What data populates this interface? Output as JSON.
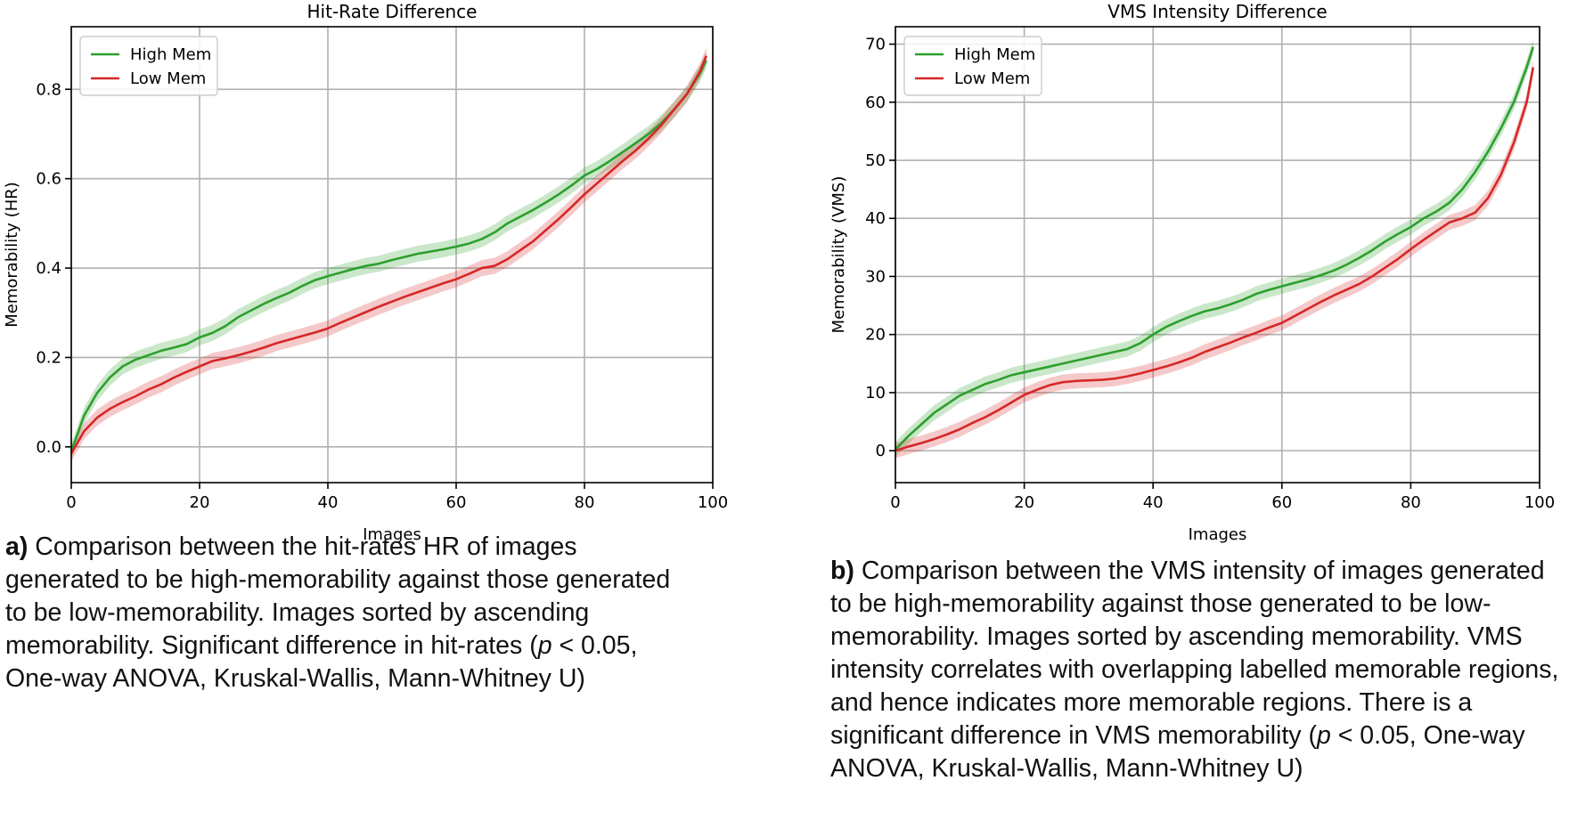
{
  "chart_data": [
    {
      "type": "line",
      "title": "Hit-Rate Difference",
      "xlabel": "Images",
      "ylabel": "Memorability (HR)",
      "xlim": [
        0,
        100
      ],
      "ylim": [
        -0.08,
        0.94
      ],
      "xticks": [
        0,
        20,
        40,
        60,
        80,
        100
      ],
      "yticks": [
        0.0,
        0.2,
        0.4,
        0.6,
        0.8
      ],
      "ytick_labels": [
        "0.0",
        "0.2",
        "0.4",
        "0.6",
        "0.8"
      ],
      "grid": true,
      "legend_position": "top-left",
      "band_halfwidth": 0.018,
      "series": [
        {
          "name": "High Mem",
          "color": "#2ca02c",
          "x": [
            0,
            2,
            4,
            6,
            8,
            10,
            12,
            14,
            16,
            18,
            20,
            22,
            24,
            26,
            28,
            30,
            32,
            34,
            36,
            38,
            40,
            42,
            44,
            46,
            48,
            50,
            52,
            54,
            56,
            58,
            60,
            62,
            64,
            66,
            68,
            70,
            72,
            74,
            76,
            78,
            80,
            82,
            84,
            86,
            88,
            90,
            92,
            94,
            96,
            98,
            99
          ],
          "values": [
            -0.01,
            0.07,
            0.12,
            0.155,
            0.18,
            0.195,
            0.205,
            0.215,
            0.222,
            0.23,
            0.245,
            0.255,
            0.27,
            0.29,
            0.305,
            0.32,
            0.333,
            0.345,
            0.36,
            0.373,
            0.382,
            0.39,
            0.398,
            0.405,
            0.41,
            0.418,
            0.425,
            0.432,
            0.437,
            0.442,
            0.448,
            0.455,
            0.465,
            0.48,
            0.5,
            0.515,
            0.53,
            0.547,
            0.565,
            0.585,
            0.607,
            0.622,
            0.64,
            0.66,
            0.68,
            0.7,
            0.725,
            0.755,
            0.79,
            0.835,
            0.865
          ]
        },
        {
          "name": "Low Mem",
          "color": "#d62728",
          "x": [
            0,
            2,
            4,
            6,
            8,
            10,
            12,
            14,
            16,
            18,
            20,
            22,
            24,
            26,
            28,
            30,
            32,
            34,
            36,
            38,
            40,
            42,
            44,
            46,
            48,
            50,
            52,
            54,
            56,
            58,
            60,
            62,
            64,
            66,
            68,
            70,
            72,
            74,
            76,
            78,
            80,
            82,
            84,
            86,
            88,
            90,
            92,
            94,
            96,
            98,
            99
          ],
          "values": [
            -0.015,
            0.035,
            0.065,
            0.085,
            0.1,
            0.113,
            0.128,
            0.14,
            0.155,
            0.168,
            0.18,
            0.192,
            0.198,
            0.205,
            0.213,
            0.222,
            0.232,
            0.24,
            0.248,
            0.256,
            0.265,
            0.278,
            0.29,
            0.302,
            0.314,
            0.325,
            0.336,
            0.346,
            0.356,
            0.366,
            0.375,
            0.387,
            0.4,
            0.405,
            0.42,
            0.44,
            0.46,
            0.485,
            0.51,
            0.537,
            0.565,
            0.59,
            0.615,
            0.64,
            0.663,
            0.69,
            0.72,
            0.755,
            0.79,
            0.84,
            0.875
          ]
        }
      ]
    },
    {
      "type": "line",
      "title": "VMS Intensity Difference",
      "xlabel": "Images",
      "ylabel": "Memorability (VMS)",
      "xlim": [
        0,
        100
      ],
      "ylim": [
        -5.5,
        73
      ],
      "xticks": [
        0,
        20,
        40,
        60,
        80,
        100
      ],
      "yticks": [
        0,
        10,
        20,
        30,
        40,
        50,
        60,
        70
      ],
      "ytick_labels": [
        "0",
        "10",
        "20",
        "30",
        "40",
        "50",
        "60",
        "70"
      ],
      "grid": true,
      "legend_position": "top-left",
      "band_halfwidth": 1.3,
      "series": [
        {
          "name": "High Mem",
          "color": "#2ca02c",
          "x": [
            0,
            2,
            4,
            6,
            8,
            10,
            12,
            14,
            16,
            18,
            20,
            22,
            24,
            26,
            28,
            30,
            32,
            34,
            36,
            38,
            40,
            42,
            44,
            46,
            48,
            50,
            52,
            54,
            56,
            58,
            60,
            62,
            64,
            66,
            68,
            70,
            72,
            74,
            76,
            78,
            80,
            82,
            84,
            86,
            88,
            90,
            92,
            94,
            96,
            98,
            99
          ],
          "values": [
            0.2,
            2.5,
            4.5,
            6.5,
            8,
            9.5,
            10.5,
            11.5,
            12.2,
            13,
            13.5,
            14,
            14.5,
            15,
            15.5,
            16,
            16.5,
            17,
            17.5,
            18.5,
            20,
            21.3,
            22.3,
            23.2,
            24,
            24.5,
            25.2,
            26,
            27,
            27.7,
            28.3,
            28.9,
            29.5,
            30.2,
            31,
            32,
            33.2,
            34.5,
            36,
            37.3,
            38.5,
            40,
            41.2,
            42.7,
            45,
            48,
            51.5,
            55.5,
            60,
            66,
            69.5
          ]
        },
        {
          "name": "Low Mem",
          "color": "#d62728",
          "x": [
            0,
            2,
            4,
            6,
            8,
            10,
            12,
            14,
            16,
            18,
            20,
            22,
            24,
            26,
            28,
            30,
            32,
            34,
            36,
            38,
            40,
            42,
            44,
            46,
            48,
            50,
            52,
            54,
            56,
            58,
            60,
            62,
            64,
            66,
            68,
            70,
            72,
            74,
            76,
            78,
            80,
            82,
            84,
            86,
            88,
            90,
            92,
            94,
            96,
            98,
            99
          ],
          "values": [
            0,
            0.7,
            1.3,
            2,
            2.8,
            3.7,
            4.8,
            5.8,
            7,
            8.3,
            9.6,
            10.5,
            11.3,
            11.8,
            12,
            12.1,
            12.2,
            12.4,
            12.8,
            13.3,
            13.9,
            14.5,
            15.2,
            16,
            17,
            17.8,
            18.6,
            19.5,
            20.3,
            21.2,
            22,
            23.2,
            24.4,
            25.6,
            26.7,
            27.7,
            28.7,
            30,
            31.5,
            33,
            34.7,
            36.3,
            37.8,
            39.3,
            40,
            41,
            43.5,
            47.5,
            53,
            60,
            66
          ]
        }
      ]
    }
  ],
  "captions": {
    "a": {
      "label": "a)",
      "text1": " Comparison between the hit-rates HR of images generated to be high-memorability against those generated to be low-memorability. Images sorted by ascending memorability. Significant difference in hit-rates (",
      "p": "p",
      "text2": " < 0.05, One-way ANOVA, Kruskal-Wallis, Mann-Whitney U)"
    },
    "b": {
      "label": "b)",
      "text1": " Comparison between the VMS intensity of images generated to be high-memorability against those generated to be low-memorability. Images sorted by ascending memorability. VMS intensity correlates with overlapping labelled memorable regions, and hence indicates more memorable regions. There is a significant difference in VMS memorability (",
      "p": "p",
      "text2": " < 0.05, One-way ANOVA, Kruskal-Wallis, Mann-Whitney U)"
    }
  }
}
